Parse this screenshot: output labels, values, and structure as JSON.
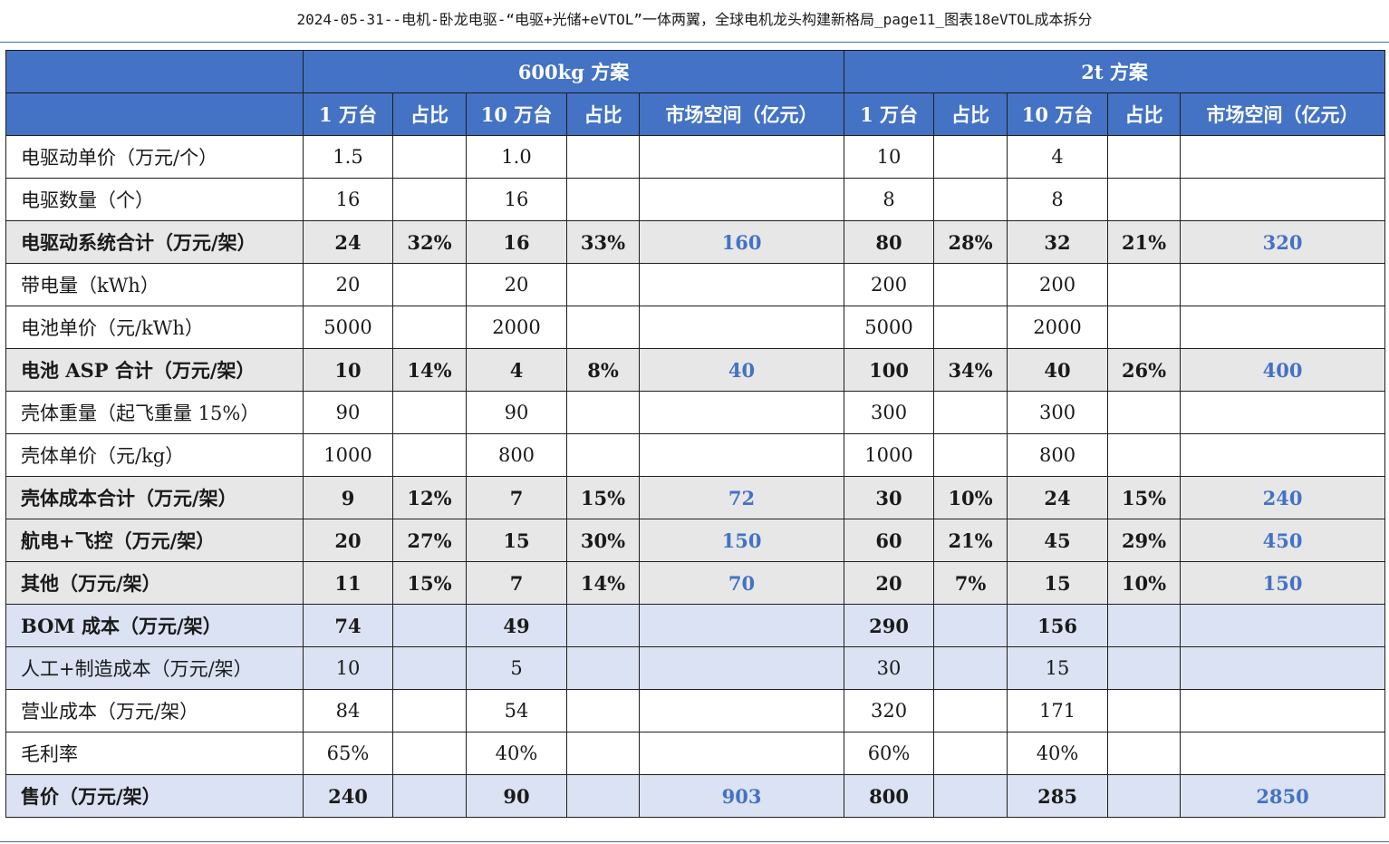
{
  "page_title": "2024-05-31--电机-卧龙电驱-“电驱+光储+eVTOL”一体两翼，全球电机龙头构建新格局_page11_图表18eVTOL成本拆分",
  "header": {
    "group_a": "600kg 方案",
    "group_b": "2t 方案",
    "columns": [
      "1 万台",
      "占比",
      "10 万台",
      "占比",
      "市场空间（亿元）",
      "1 万台",
      "占比",
      "10 万台",
      "占比",
      "市场空间（亿元）"
    ]
  },
  "rows": [
    {
      "label": "电驱动单价（万元/个）",
      "cells": [
        "1.5",
        "",
        "1.0",
        "",
        "",
        "10",
        "",
        "4",
        "",
        ""
      ]
    },
    {
      "label": "电驱数量（个）",
      "cells": [
        "16",
        "",
        "16",
        "",
        "",
        "8",
        "",
        "8",
        "",
        ""
      ]
    },
    {
      "label": "电驱动系统合计（万元/架）",
      "cells": [
        "24",
        "32%",
        "16",
        "33%",
        "160",
        "80",
        "28%",
        "32",
        "21%",
        "320"
      ]
    },
    {
      "label": "带电量（kWh）",
      "cells": [
        "20",
        "",
        "20",
        "",
        "",
        "200",
        "",
        "200",
        "",
        ""
      ]
    },
    {
      "label": "电池单价（元/kWh）",
      "cells": [
        "5000",
        "",
        "2000",
        "",
        "",
        "5000",
        "",
        "2000",
        "",
        ""
      ]
    },
    {
      "label": "电池 ASP 合计（万元/架）",
      "cells": [
        "10",
        "14%",
        "4",
        "8%",
        "40",
        "100",
        "34%",
        "40",
        "26%",
        "400"
      ]
    },
    {
      "label": "壳体重量（起飞重量 15%）",
      "cells": [
        "90",
        "",
        "90",
        "",
        "",
        "300",
        "",
        "300",
        "",
        ""
      ]
    },
    {
      "label": "壳体单价（元/kg）",
      "cells": [
        "1000",
        "",
        "800",
        "",
        "",
        "1000",
        "",
        "800",
        "",
        ""
      ]
    },
    {
      "label": "壳体成本合计（万元/架）",
      "cells": [
        "9",
        "12%",
        "7",
        "15%",
        "72",
        "30",
        "10%",
        "24",
        "15%",
        "240"
      ]
    },
    {
      "label": "航电+飞控（万元/架）",
      "cells": [
        "20",
        "27%",
        "15",
        "30%",
        "150",
        "60",
        "21%",
        "45",
        "29%",
        "450"
      ]
    },
    {
      "label": "其他（万元/架）",
      "cells": [
        "11",
        "15%",
        "7",
        "14%",
        "70",
        "20",
        "7%",
        "15",
        "10%",
        "150"
      ]
    },
    {
      "label": "BOM 成本（万元/架）",
      "cells": [
        "74",
        "",
        "49",
        "",
        "",
        "290",
        "",
        "156",
        "",
        ""
      ]
    },
    {
      "label": "人工+制造成本（万元/架）",
      "cells": [
        "10",
        "",
        "5",
        "",
        "",
        "30",
        "",
        "15",
        "",
        ""
      ]
    },
    {
      "label": "营业成本（万元/架）",
      "cells": [
        "84",
        "",
        "54",
        "",
        "",
        "320",
        "",
        "171",
        "",
        ""
      ]
    },
    {
      "label": "毛利率",
      "cells": [
        "65%",
        "",
        "40%",
        "",
        "",
        "60%",
        "",
        "40%",
        "",
        ""
      ]
    },
    {
      "label": "售价（万元/架）",
      "cells": [
        "240",
        "",
        "90",
        "",
        "903",
        "800",
        "",
        "285",
        "",
        "2850"
      ]
    }
  ],
  "colors": {
    "header_bg": "#4472c4",
    "header_text": "#ffffff",
    "subtotal_bg": "#e7e7e7",
    "bom_bg": "#dae2f3",
    "market_text": "#4472c4"
  }
}
